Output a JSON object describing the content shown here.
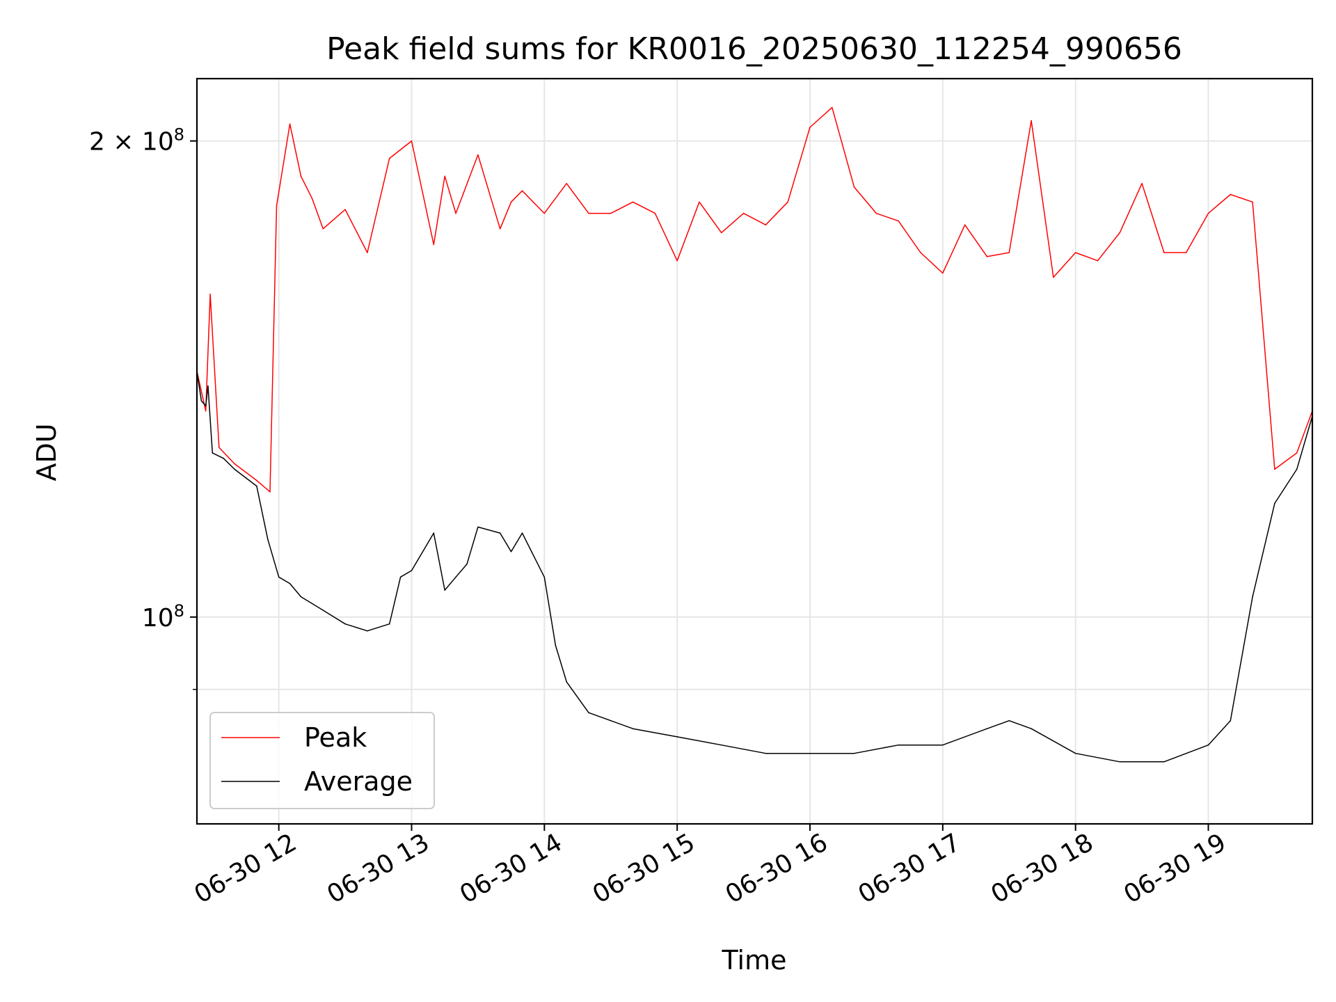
{
  "chart_data": {
    "type": "line",
    "title": "Peak field sums for KR0016_20250630_112254_990656",
    "xlabel": "Time",
    "ylabel": "ADU",
    "yscale": "log",
    "ylim": [
      74000000,
      219000000
    ],
    "xlim": [
      "2025-06-30 11:23",
      "2025-06-30 19:47"
    ],
    "x_ticks": [
      "06-30 12",
      "06-30 13",
      "06-30 14",
      "06-30 15",
      "06-30 16",
      "06-30 17",
      "06-30 18",
      "06-30 19"
    ],
    "y_ticks": [
      "2 × 10^8",
      "10^8"
    ],
    "grid": true,
    "legend": "lower-left",
    "series": [
      {
        "name": "Peak",
        "color": "#ff0000",
        "x": [
          "11:23",
          "11:27",
          "11:29",
          "11:33",
          "11:40",
          "11:50",
          "11:56",
          "11:59",
          "12:05",
          "12:10",
          "12:15",
          "12:20",
          "12:30",
          "12:40",
          "12:50",
          "13:00",
          "13:10",
          "13:15",
          "13:20",
          "13:30",
          "13:40",
          "13:45",
          "13:50",
          "14:00",
          "14:10",
          "14:20",
          "14:30",
          "14:40",
          "14:50",
          "15:00",
          "15:10",
          "15:20",
          "15:30",
          "15:40",
          "15:50",
          "16:00",
          "16:10",
          "16:20",
          "16:30",
          "16:40",
          "16:50",
          "17:00",
          "17:10",
          "17:20",
          "17:30",
          "17:40",
          "17:50",
          "18:00",
          "18:10",
          "18:20",
          "18:30",
          "18:40",
          "18:50",
          "19:00",
          "19:10",
          "19:20",
          "19:30",
          "19:40",
          "19:47"
        ],
        "y": [
          143000000,
          135000000,
          160000000,
          128000000,
          125000000,
          122000000,
          120000000,
          182000000,
          205000000,
          190000000,
          184000000,
          176000000,
          181000000,
          170000000,
          195000000,
          200000000,
          172000000,
          190000000,
          180000000,
          196000000,
          176000000,
          183000000,
          186000000,
          180000000,
          188000000,
          180000000,
          180000000,
          183000000,
          180000000,
          168000000,
          183000000,
          175000000,
          180000000,
          177000000,
          183000000,
          204000000,
          210000000,
          187000000,
          180000000,
          178000000,
          170000000,
          165000000,
          177000000,
          169000000,
          170000000,
          206000000,
          164000000,
          170000000,
          168000000,
          175000000,
          188000000,
          170000000,
          170000000,
          180000000,
          185000000,
          183000000,
          124000000,
          127000000,
          135000000
        ]
      },
      {
        "name": "Average",
        "color": "#000000",
        "x": [
          "11:23",
          "11:25",
          "11:27",
          "11:28",
          "11:30",
          "11:35",
          "11:40",
          "11:50",
          "11:55",
          "12:00",
          "12:05",
          "12:10",
          "12:20",
          "12:30",
          "12:40",
          "12:50",
          "12:55",
          "13:00",
          "13:10",
          "13:15",
          "13:20",
          "13:25",
          "13:30",
          "13:40",
          "13:45",
          "13:50",
          "14:00",
          "14:05",
          "14:10",
          "14:20",
          "14:30",
          "14:40",
          "15:00",
          "15:20",
          "15:40",
          "16:00",
          "16:20",
          "16:40",
          "17:00",
          "17:20",
          "17:30",
          "17:40",
          "18:00",
          "18:20",
          "18:40",
          "19:00",
          "19:10",
          "19:20",
          "19:30",
          "19:40",
          "19:47"
        ],
        "y": [
          143000000,
          137000000,
          136000000,
          140000000,
          127000000,
          126000000,
          124000000,
          121000000,
          112000000,
          106000000,
          105000000,
          103000000,
          101000000,
          99000000,
          98000000,
          99000000,
          106000000,
          107000000,
          113000000,
          104000000,
          106000000,
          108000000,
          114000000,
          113000000,
          110000000,
          113000000,
          106000000,
          96000000,
          91000000,
          87000000,
          86000000,
          85000000,
          84000000,
          83000000,
          82000000,
          82000000,
          82000000,
          83000000,
          83000000,
          85000000,
          86000000,
          85000000,
          82000000,
          81000000,
          81000000,
          83000000,
          86000000,
          103000000,
          118000000,
          124000000,
          134000000
        ]
      }
    ]
  }
}
